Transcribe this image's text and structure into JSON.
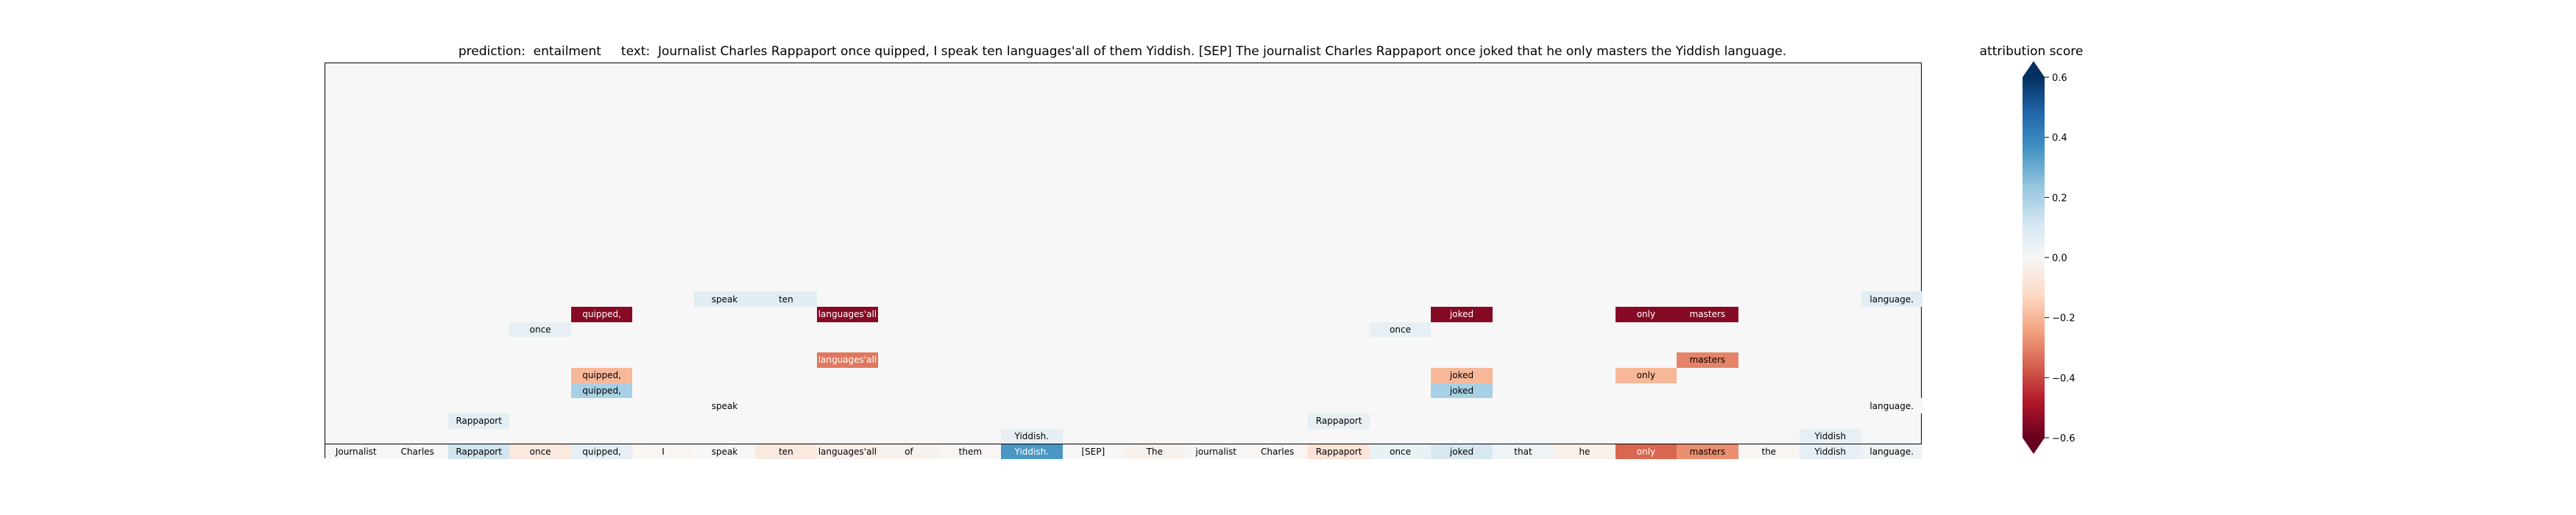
{
  "chart_data": {
    "type": "heatmap",
    "title": "prediction:  entailment     text:  Journalist Charles Rappaport once quipped, I speak ten languages'all of them Yiddish. [SEP] The journalist Charles Rappaport once joked that he only masters the Yiddish language.",
    "tokens": [
      "Journalist",
      "Charles",
      "Rappaport",
      "once",
      "quipped,",
      "I",
      "speak",
      "ten",
      "languages'all",
      "of",
      "them",
      "Yiddish.",
      "[SEP]",
      "The",
      "journalist",
      "Charles",
      "Rappaport",
      "once",
      "joked",
      "that",
      "he",
      "only",
      "masters",
      "the",
      "Yiddish",
      "language."
    ],
    "rows": 26,
    "cells": [
      {
        "row": 0,
        "col": 0,
        "text": "Journalist",
        "value": 0.0
      },
      {
        "row": 0,
        "col": 1,
        "text": "Charles",
        "value": 0.0
      },
      {
        "row": 0,
        "col": 2,
        "text": "Rappaport",
        "value": 0.12
      },
      {
        "row": 0,
        "col": 3,
        "text": "once",
        "value": -0.06
      },
      {
        "row": 0,
        "col": 4,
        "text": "quipped,",
        "value": 0.05
      },
      {
        "row": 0,
        "col": 5,
        "text": "I",
        "value": -0.01
      },
      {
        "row": 0,
        "col": 6,
        "text": "speak",
        "value": 0.0
      },
      {
        "row": 0,
        "col": 7,
        "text": "ten",
        "value": -0.06
      },
      {
        "row": 0,
        "col": 8,
        "text": "languages'all",
        "value": -0.03
      },
      {
        "row": 0,
        "col": 9,
        "text": "of",
        "value": -0.02
      },
      {
        "row": 0,
        "col": 10,
        "text": "them",
        "value": -0.01
      },
      {
        "row": 0,
        "col": 11,
        "text": "Yiddish.",
        "value": 0.35
      },
      {
        "row": 0,
        "col": 12,
        "text": "[SEP]",
        "value": 0.0
      },
      {
        "row": 0,
        "col": 13,
        "text": "The",
        "value": -0.02
      },
      {
        "row": 0,
        "col": 14,
        "text": "journalist",
        "value": 0.0
      },
      {
        "row": 0,
        "col": 15,
        "text": "Charles",
        "value": -0.01
      },
      {
        "row": 0,
        "col": 16,
        "text": "Rappaport",
        "value": -0.08
      },
      {
        "row": 0,
        "col": 17,
        "text": "once",
        "value": 0.04
      },
      {
        "row": 0,
        "col": 18,
        "text": "joked",
        "value": 0.1
      },
      {
        "row": 0,
        "col": 19,
        "text": "that",
        "value": 0.03
      },
      {
        "row": 0,
        "col": 20,
        "text": "he",
        "value": -0.03
      },
      {
        "row": 0,
        "col": 21,
        "text": "only",
        "value": -0.35
      },
      {
        "row": 0,
        "col": 22,
        "text": "masters",
        "value": -0.28
      },
      {
        "row": 0,
        "col": 23,
        "text": "the",
        "value": -0.01
      },
      {
        "row": 0,
        "col": 24,
        "text": "Yiddish",
        "value": 0.05
      },
      {
        "row": 0,
        "col": 25,
        "text": "language.",
        "value": 0.03
      },
      {
        "row": 1,
        "col": 11,
        "text": "Yiddish.",
        "value": 0.05
      },
      {
        "row": 1,
        "col": 24,
        "text": "Yiddish",
        "value": 0.05
      },
      {
        "row": 2,
        "col": 2,
        "text": "Rappaport",
        "value": 0.06
      },
      {
        "row": 2,
        "col": 16,
        "text": "Rappaport",
        "value": 0.05
      },
      {
        "row": 3,
        "col": 6,
        "text": "speak",
        "value": 0.0
      },
      {
        "row": 3,
        "col": 25,
        "text": "language.",
        "value": 0.0
      },
      {
        "row": 4,
        "col": 4,
        "text": "quipped,",
        "value": 0.2
      },
      {
        "row": 4,
        "col": 18,
        "text": "joked",
        "value": 0.2
      },
      {
        "row": 5,
        "col": 4,
        "text": "quipped,",
        "value": -0.2
      },
      {
        "row": 5,
        "col": 18,
        "text": "joked",
        "value": -0.2
      },
      {
        "row": 5,
        "col": 21,
        "text": "only",
        "value": -0.2
      },
      {
        "row": 6,
        "col": 8,
        "text": "languages'all",
        "value": -0.32
      },
      {
        "row": 6,
        "col": 22,
        "text": "masters",
        "value": -0.3
      },
      {
        "row": 8,
        "col": 3,
        "text": "once",
        "value": 0.05
      },
      {
        "row": 8,
        "col": 17,
        "text": "once",
        "value": 0.05
      },
      {
        "row": 9,
        "col": 4,
        "text": "quipped,",
        "value": -0.55
      },
      {
        "row": 9,
        "col": 8,
        "text": "languages'all",
        "value": -0.55
      },
      {
        "row": 9,
        "col": 18,
        "text": "joked",
        "value": -0.55
      },
      {
        "row": 9,
        "col": 21,
        "text": "only",
        "value": -0.55
      },
      {
        "row": 9,
        "col": 22,
        "text": "masters",
        "value": -0.55
      },
      {
        "row": 10,
        "col": 6,
        "text": "speak",
        "value": 0.07
      },
      {
        "row": 10,
        "col": 7,
        "text": "ten",
        "value": 0.07
      },
      {
        "row": 10,
        "col": 25,
        "text": "language.",
        "value": 0.07
      }
    ],
    "colorbar": {
      "label": "attribution score",
      "range": [
        -0.6,
        0.6
      ],
      "ticks": [
        0.6,
        0.4,
        0.2,
        0.0,
        -0.2,
        -0.4,
        -0.6
      ],
      "tick_labels": [
        "0.6",
        "0.4",
        "0.2",
        "0.0",
        "−0.2",
        "−0.4",
        "−0.6"
      ],
      "colormap": "RdBu",
      "extend": "both"
    }
  }
}
